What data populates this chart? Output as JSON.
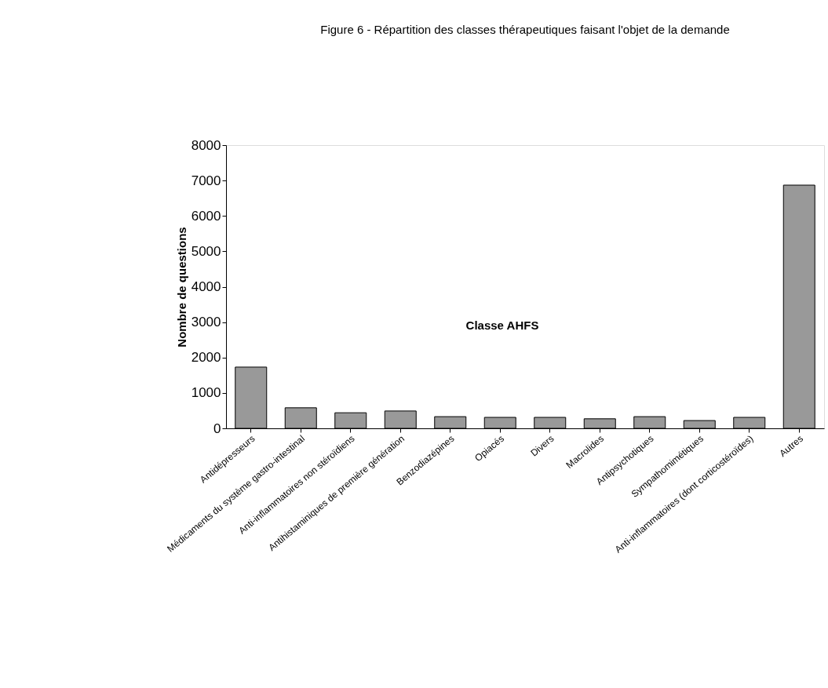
{
  "chart_data": {
    "type": "bar",
    "title": "Figure 6 - Répartition des classes thérapeutiques faisant l'objet de la demande",
    "xlabel": "Classe AHFS",
    "ylabel": "Nombre de questions",
    "categories": [
      "Antidépresseurs",
      "Médicaments du système gastro-intestinal",
      "Anti-inflammatoires non stéroïdiens",
      "Antihistaminiques de première génération",
      "Benzodiazépines",
      "Opiacés",
      "Divers",
      "Macrolides",
      "Antipsychotiques",
      "Sympathomimétiques",
      "Anti-inflammatoires (dont corticostéroïdes)",
      "Autres"
    ],
    "values": [
      1730,
      580,
      440,
      490,
      330,
      310,
      310,
      270,
      330,
      220,
      310,
      6870
    ],
    "color": "#999999",
    "ylim": [
      0,
      8000
    ],
    "yticks": [
      0,
      1000,
      2000,
      3000,
      4000,
      5000,
      6000,
      7000,
      8000
    ],
    "grid": false
  }
}
